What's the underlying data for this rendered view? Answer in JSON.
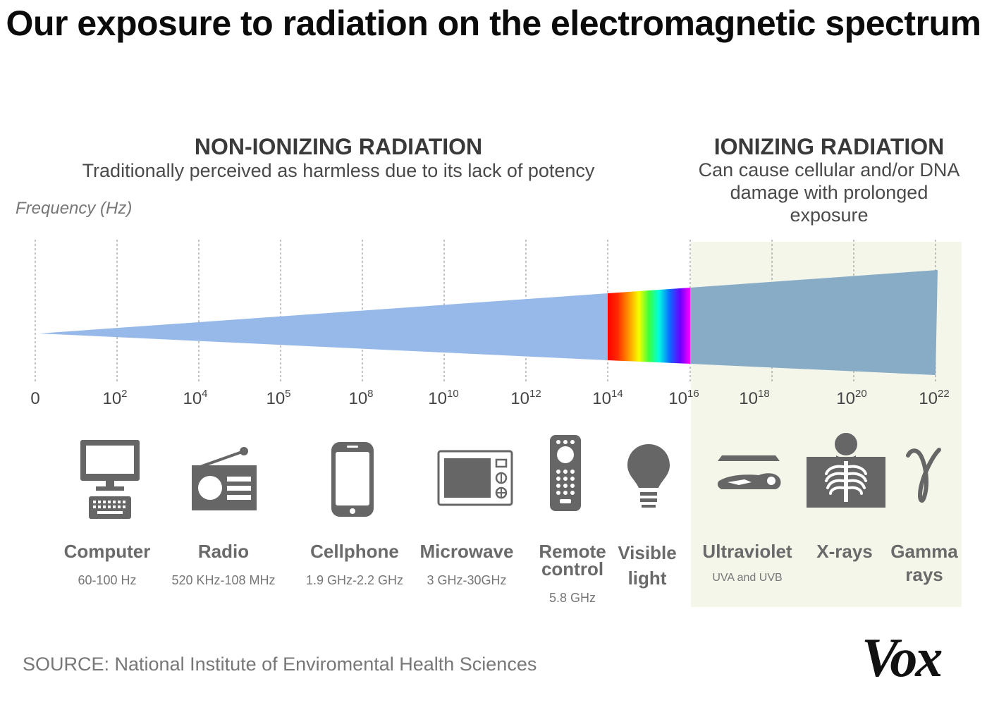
{
  "title": "Our exposure to radiation on the electromagnetic spectrum",
  "non_ionizing": {
    "heading": "NON-IONIZING RADIATION",
    "subheading": "Traditionally perceived as harmless due to its lack of potency"
  },
  "ionizing": {
    "heading": "IONIZING RADIATION",
    "subheading": "Can cause cellular and/or DNA damage with prolonged exposure"
  },
  "frequency_label": "Frequency (Hz)",
  "ticks": [
    {
      "base": "0",
      "exp": ""
    },
    {
      "base": "10",
      "exp": "2"
    },
    {
      "base": "10",
      "exp": "4"
    },
    {
      "base": "10",
      "exp": "5"
    },
    {
      "base": "10",
      "exp": "8"
    },
    {
      "base": "10",
      "exp": "10"
    },
    {
      "base": "10",
      "exp": "12"
    },
    {
      "base": "10",
      "exp": "14"
    },
    {
      "base": "10",
      "exp": "16"
    },
    {
      "base": "10",
      "exp": "18"
    },
    {
      "base": "10",
      "exp": "20"
    },
    {
      "base": "10",
      "exp": "22"
    }
  ],
  "categories": [
    {
      "name": "Computer",
      "detail": "60-100 Hz",
      "icon": "computer-icon"
    },
    {
      "name": "Radio",
      "detail": "520 KHz-108 MHz",
      "icon": "radio-icon"
    },
    {
      "name": "Cellphone",
      "detail": "1.9 GHz-2.2 GHz",
      "icon": "cellphone-icon"
    },
    {
      "name": "Microwave",
      "detail": "3 GHz-30GHz",
      "icon": "microwave-icon"
    },
    {
      "name": "Remote control",
      "detail": "5.8 GHz",
      "icon": "remote-control-icon"
    },
    {
      "name": "Visible light",
      "detail": "",
      "icon": "light-bulb-icon"
    },
    {
      "name": "Ultraviolet",
      "detail": "UVA and UVB",
      "icon": "tanning-bed-icon"
    },
    {
      "name": "X-rays",
      "detail": "",
      "icon": "xray-icon"
    },
    {
      "name": "Gamma rays",
      "detail": "",
      "icon": "gamma-icon"
    }
  ],
  "colors": {
    "non_ionizing_band": "#97b9ea",
    "ionizing_band": "#88abc6",
    "ionizing_background": "#f4f6ea",
    "icon_gray": "#666666"
  },
  "source": "SOURCE: National Institute of Enviromental Health Sciences",
  "logo": "Vox"
}
